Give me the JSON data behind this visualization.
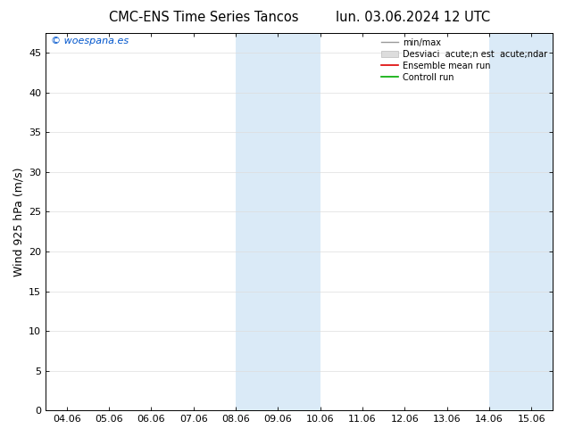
{
  "title_left": "CMC-ENS Time Series Tancos",
  "title_right": "lun. 03.06.2024 12 UTC",
  "ylabel": "Wind 925 hPa (m/s)",
  "ylim": [
    0,
    47.5
  ],
  "yticks": [
    0,
    5,
    10,
    15,
    20,
    25,
    30,
    35,
    40,
    45
  ],
  "x_labels": [
    "04.06",
    "05.06",
    "06.06",
    "07.06",
    "08.06",
    "09.06",
    "10.06",
    "11.06",
    "12.06",
    "13.06",
    "14.06",
    "15.06"
  ],
  "x_positions": [
    0,
    1,
    2,
    3,
    4,
    5,
    6,
    7,
    8,
    9,
    10,
    11
  ],
  "xlim": [
    -0.5,
    11.5
  ],
  "shaded_bands": [
    {
      "xmin": 4.0,
      "xmax": 5.0
    },
    {
      "xmin": 5.0,
      "xmax": 6.0
    },
    {
      "xmin": 10.0,
      "xmax": 11.5
    }
  ],
  "shade_color": "#daeaf7",
  "watermark": "© woespana.es",
  "watermark_color": "#0055cc",
  "legend_labels": [
    "min/max",
    "Desviaci  acute;n est  acute;ndar",
    "Ensemble mean run",
    "Controll run"
  ],
  "legend_colors": [
    "#aaaaaa",
    "#cccccc",
    "#dd0000",
    "#00aa00"
  ],
  "background_color": "#ffffff",
  "plot_bg_color": "#ffffff",
  "grid_color": "#dddddd",
  "title_fontsize": 10.5,
  "tick_fontsize": 8,
  "ylabel_fontsize": 9
}
